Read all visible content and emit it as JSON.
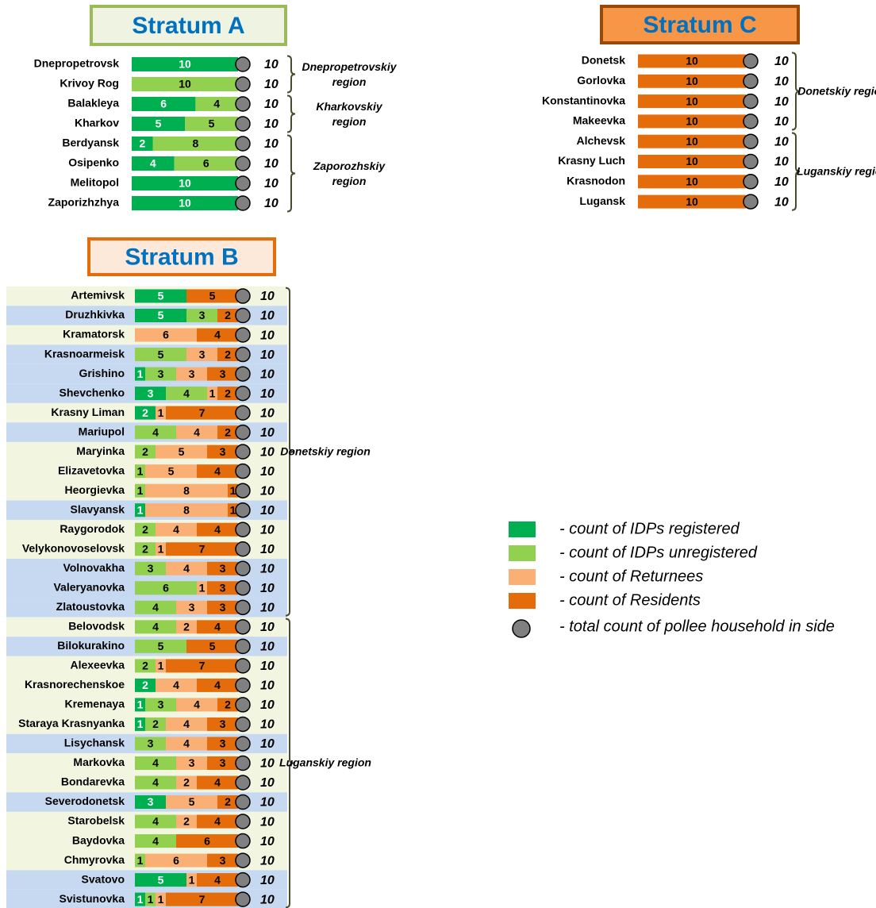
{
  "legend": {
    "series": [
      {
        "name": "- count of IDPs registered",
        "color": "#00b050",
        "label_color": "#ffffff"
      },
      {
        "name": "- count of IDPs unregistered",
        "color": "#92d050",
        "label_color": "#000000"
      },
      {
        "name": "- count of Returnees",
        "color": "#fab075",
        "label_color": "#000000"
      },
      {
        "name": "- count of Residents",
        "color": "#e46c0a",
        "label_color": "#000000"
      }
    ],
    "total": {
      "name": "- total count of pollee household in side",
      "color": "#808080"
    }
  },
  "chart_data": [
    {
      "type": "bar",
      "title": "Stratum A",
      "title_fill": "#eef3e2",
      "title_border": "#9bbb59",
      "groups": [
        {
          "label": "Dnepropetrovskiy region",
          "categories": [
            "Dnepropetrovsk",
            "Krivoy Rog"
          ]
        },
        {
          "label": "Kharkovskiy region",
          "categories": [
            "Balakleya",
            "Kharkov"
          ]
        },
        {
          "label": "Zaporozhskiy region",
          "categories": [
            "Berdyansk",
            "Osipenko",
            "Melitopol",
            "Zaporizhzhya"
          ]
        }
      ],
      "series": [
        {
          "values": [
            10,
            0,
            6,
            5,
            2,
            4,
            10,
            10
          ]
        },
        {
          "values": [
            0,
            10,
            4,
            5,
            8,
            6,
            0,
            0
          ]
        },
        {
          "values": [
            0,
            0,
            0,
            0,
            0,
            0,
            0,
            0
          ]
        },
        {
          "values": [
            0,
            0,
            0,
            0,
            0,
            0,
            0,
            0
          ]
        }
      ],
      "totals": [
        10,
        10,
        10,
        10,
        10,
        10,
        10,
        10
      ]
    },
    {
      "type": "bar",
      "title": "Stratum C",
      "title_fill": "#f79646",
      "title_border": "#984807",
      "groups": [
        {
          "label": "Donetskiy region",
          "categories": [
            "Donetsk",
            "Gorlovka",
            "Konstantinovka",
            "Makeevka"
          ]
        },
        {
          "label": "Luganskiy region",
          "categories": [
            "Alchevsk",
            "Krasny Luch",
            "Krasnodon",
            "Lugansk"
          ]
        }
      ],
      "series": [
        {
          "values": [
            0,
            0,
            0,
            0,
            0,
            0,
            0,
            0
          ]
        },
        {
          "values": [
            0,
            0,
            0,
            0,
            0,
            0,
            0,
            0
          ]
        },
        {
          "values": [
            0,
            0,
            0,
            0,
            0,
            0,
            0,
            0
          ]
        },
        {
          "values": [
            10,
            10,
            10,
            10,
            10,
            10,
            10,
            10
          ]
        }
      ],
      "totals": [
        10,
        10,
        10,
        10,
        10,
        10,
        10,
        10
      ]
    },
    {
      "type": "bar",
      "title": "Stratum B",
      "title_fill": "#fde9d9",
      "title_border": "#e46c0a",
      "groups": [
        {
          "label": "Donetskiy region",
          "categories": [
            "Artemivsk",
            "Druzhkivka",
            "Kramatorsk",
            "Krasnoarmeisk",
            "Grishino",
            "Shevchenko",
            "Krasny Liman",
            "Mariupol",
            "Maryinka",
            "Elizavetovka",
            "Heorgievka",
            "Slavyansk",
            "Raygorodok",
            "Velykonovoselovsk",
            "Volnovakha",
            "Valeryanovka",
            "Zlatoustovka"
          ]
        },
        {
          "label": "Luganskiy region",
          "categories": [
            "Belovodsk",
            "Bilokurakino",
            "Alexeevka",
            "Krasnorechenskoe",
            "Kremenaya",
            "Staraya Krasnyanka",
            "Lisychansk",
            "Markovka",
            "Bondarevka",
            "Severodonetsk",
            "Starobelsk",
            "Baydovka",
            "Chmyrovka",
            "Svatovo",
            "Svistunovka"
          ]
        }
      ],
      "series": [
        {
          "values": [
            5,
            5,
            0,
            0,
            1,
            3,
            2,
            0,
            0,
            0,
            0,
            1,
            0,
            0,
            0,
            0,
            0,
            0,
            0,
            0,
            2,
            1,
            1,
            0,
            0,
            0,
            3,
            0,
            0,
            0,
            5,
            1
          ]
        },
        {
          "values": [
            0,
            3,
            0,
            5,
            3,
            4,
            0,
            4,
            2,
            1,
            1,
            0,
            2,
            2,
            3,
            6,
            4,
            4,
            5,
            2,
            0,
            3,
            2,
            3,
            4,
            4,
            0,
            4,
            4,
            1,
            0,
            1
          ]
        },
        {
          "values": [
            0,
            0,
            6,
            3,
            3,
            1,
            1,
            4,
            5,
            5,
            8,
            8,
            4,
            1,
            4,
            1,
            3,
            2,
            0,
            1,
            4,
            4,
            4,
            4,
            3,
            2,
            5,
            2,
            0,
            6,
            1,
            1
          ]
        },
        {
          "values": [
            5,
            2,
            4,
            2,
            3,
            2,
            7,
            2,
            3,
            4,
            1,
            1,
            4,
            7,
            3,
            3,
            3,
            4,
            5,
            7,
            4,
            2,
            3,
            3,
            3,
            4,
            2,
            4,
            6,
            3,
            4,
            7
          ]
        }
      ],
      "totals": [
        10,
        10,
        10,
        10,
        10,
        10,
        10,
        10,
        10,
        10,
        10,
        10,
        10,
        10,
        10,
        10,
        10,
        10,
        10,
        10,
        10,
        10,
        10,
        10,
        10,
        10,
        10,
        10,
        10,
        10,
        10,
        10
      ],
      "row_colors": [
        "#f2f5e0",
        "#c6d9f1",
        "#f2f5e0",
        "#c6d9f1",
        "#c6d9f1",
        "#c6d9f1",
        "#f2f5e0",
        "#c6d9f1",
        "#f2f5e0",
        "#f2f5e0",
        "#f2f5e0",
        "#c6d9f1",
        "#f2f5e0",
        "#f2f5e0",
        "#c6d9f1",
        "#c6d9f1",
        "#c6d9f1",
        "#f2f5e0",
        "#c6d9f1",
        "#f2f5e0",
        "#f2f5e0",
        "#f2f5e0",
        "#f2f5e0",
        "#c6d9f1",
        "#f2f5e0",
        "#f2f5e0",
        "#c6d9f1",
        "#f2f5e0",
        "#f2f5e0",
        "#f2f5e0",
        "#c6d9f1",
        "#c6d9f1"
      ]
    }
  ]
}
